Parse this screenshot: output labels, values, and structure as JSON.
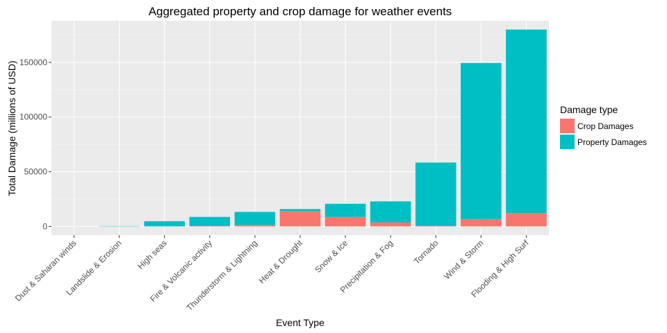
{
  "chart_data": {
    "type": "bar",
    "stacked": true,
    "title": "Aggregated property and crop damage for weather events",
    "xlabel": "Event Type",
    "ylabel": "Total Damage (millions of USD)",
    "ylim": [
      -8000,
      188000
    ],
    "yticks": [
      0,
      50000,
      100000,
      150000
    ],
    "grid": true,
    "legend": {
      "title": "Damage type",
      "position": "right"
    },
    "categories": [
      "Dust & Saharan winds",
      "Landslide & Erosion",
      "High seas",
      "Fire & Volcanic activity",
      "Thunderstorm & Lightning",
      "Heat & Drought",
      "Snow & Ice",
      "Precipitation & Fog",
      "Tornado",
      "Wind & Storm",
      "Flooding & High Surf"
    ],
    "series": [
      {
        "name": "Crop Damages",
        "color": "#F8766D",
        "values": [
          0,
          20,
          50,
          400,
          1300,
          14000,
          8700,
          3700,
          400,
          6700,
          12200
        ]
      },
      {
        "name": "Property Damages",
        "color": "#00BFC4",
        "values": [
          10,
          300,
          4700,
          8300,
          12000,
          1900,
          12000,
          19200,
          58000,
          142800,
          167800
        ]
      }
    ]
  }
}
